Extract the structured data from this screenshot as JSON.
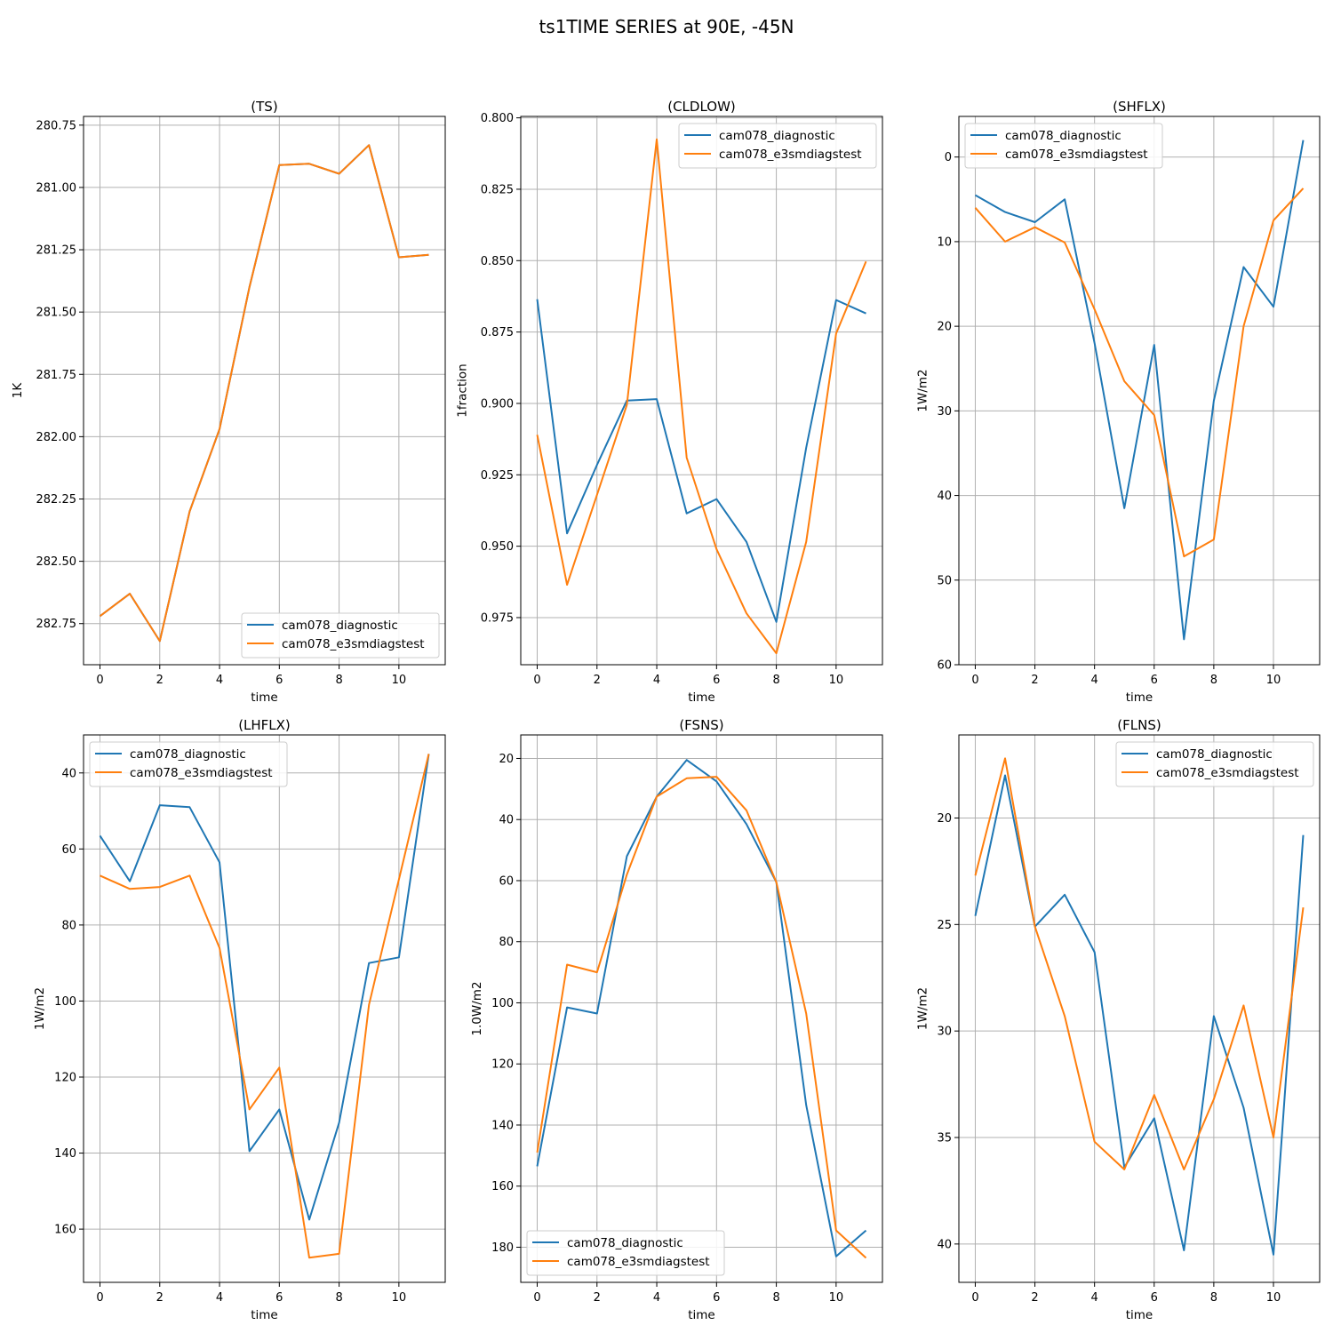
{
  "figure": {
    "suptitle": "ts1TIME SERIES at 90E, -45N"
  },
  "colors": {
    "series1": "#1f77b4",
    "series2": "#ff7f0e",
    "grid": "#b0b0b0",
    "axes": "#000000"
  },
  "chart_data": [
    {
      "type": "line",
      "title": "(TS)",
      "xlabel": "time",
      "ylabel": "1K",
      "x": [
        0,
        1,
        2,
        3,
        4,
        5,
        6,
        7,
        8,
        9,
        10,
        11
      ],
      "xlim": [
        -0.55,
        11.55
      ],
      "ylim": [
        282.915,
        280.715
      ],
      "y_inverted": true,
      "xticks": [
        0,
        2,
        4,
        6,
        8,
        10
      ],
      "yticks": [
        280.75,
        281.0,
        281.25,
        281.5,
        281.75,
        282.0,
        282.25,
        282.5,
        282.75
      ],
      "ytick_labels": [
        "280.75",
        "281.00",
        "281.25",
        "281.50",
        "281.75",
        "282.00",
        "282.25",
        "282.50",
        "282.75"
      ],
      "grid": true,
      "legend": "lower right",
      "series": [
        {
          "name": "cam078_diagnostic",
          "values": [
            282.72,
            282.63,
            282.82,
            282.3,
            281.97,
            281.4,
            280.91,
            280.905,
            280.945,
            280.83,
            281.28,
            281.27
          ]
        },
        {
          "name": "cam078_e3smdiagstest",
          "values": [
            282.72,
            282.63,
            282.82,
            282.3,
            281.97,
            281.4,
            280.91,
            280.905,
            280.945,
            280.83,
            281.28,
            281.27
          ]
        }
      ]
    },
    {
      "type": "line",
      "title": "(CLDLOW)",
      "xlabel": "time",
      "ylabel": "1fraction",
      "x": [
        0,
        1,
        2,
        3,
        4,
        5,
        6,
        7,
        8,
        9,
        10,
        11
      ],
      "xlim": [
        -0.55,
        11.55
      ],
      "ylim": [
        0.9915,
        0.7995
      ],
      "y_inverted": true,
      "xticks": [
        0,
        2,
        4,
        6,
        8,
        10
      ],
      "yticks": [
        0.8,
        0.825,
        0.85,
        0.875,
        0.9,
        0.925,
        0.95,
        0.975
      ],
      "ytick_labels": [
        "0.800",
        "0.825",
        "0.850",
        "0.875",
        "0.900",
        "0.925",
        "0.950",
        "0.975"
      ],
      "grid": true,
      "legend": "upper right",
      "series": [
        {
          "name": "cam078_diagnostic",
          "values": [
            0.8635,
            0.9455,
            0.9215,
            0.899,
            0.8985,
            0.9385,
            0.9335,
            0.9485,
            0.9765,
            0.9155,
            0.8638,
            0.8685
          ]
        },
        {
          "name": "cam078_e3smdiagstest",
          "values": [
            0.911,
            0.9635,
            0.932,
            0.9005,
            0.8075,
            0.919,
            0.951,
            0.9735,
            0.9875,
            0.9485,
            0.8755,
            0.8503
          ]
        }
      ]
    },
    {
      "type": "line",
      "title": "(SHFLX)",
      "xlabel": "time",
      "ylabel": "1W/m2",
      "x": [
        0,
        1,
        2,
        3,
        4,
        5,
        6,
        7,
        8,
        9,
        10,
        11
      ],
      "xlim": [
        -0.55,
        11.55
      ],
      "ylim": [
        60,
        -4.8
      ],
      "y_inverted": true,
      "xticks": [
        0,
        2,
        4,
        6,
        8,
        10
      ],
      "yticks": [
        0,
        10,
        20,
        30,
        40,
        50,
        60
      ],
      "ytick_labels": [
        "0",
        "10",
        "20",
        "30",
        "40",
        "50",
        "60"
      ],
      "grid": true,
      "legend": "upper left",
      "series": [
        {
          "name": "cam078_diagnostic",
          "values": [
            4.5,
            6.5,
            7.7,
            5.0,
            22.0,
            41.5,
            22.2,
            57.0,
            28.8,
            13.0,
            17.7,
            -2.0
          ]
        },
        {
          "name": "cam078_e3smdiagstest",
          "values": [
            6.0,
            10.0,
            8.3,
            10.1,
            18.0,
            26.5,
            30.5,
            47.2,
            45.2,
            20.0,
            7.5,
            3.7
          ]
        }
      ]
    },
    {
      "type": "line",
      "title": "(LHFLX)",
      "xlabel": "time",
      "ylabel": "1W/m2",
      "x": [
        0,
        1,
        2,
        3,
        4,
        5,
        6,
        7,
        8,
        9,
        10,
        11
      ],
      "xlim": [
        -0.55,
        11.55
      ],
      "ylim": [
        174,
        30
      ],
      "y_inverted": true,
      "xticks": [
        0,
        2,
        4,
        6,
        8,
        10
      ],
      "yticks": [
        40,
        60,
        80,
        100,
        120,
        140,
        160
      ],
      "ytick_labels": [
        "40",
        "60",
        "80",
        "100",
        "120",
        "140",
        "160"
      ],
      "grid": true,
      "legend": "upper left",
      "series": [
        {
          "name": "cam078_diagnostic",
          "values": [
            56.5,
            68.5,
            48.5,
            49.0,
            63.5,
            139.5,
            128.5,
            157.5,
            132.0,
            90.0,
            88.5,
            35.0
          ]
        },
        {
          "name": "cam078_e3smdiagstest",
          "values": [
            67.0,
            70.5,
            70.0,
            67.0,
            86.0,
            128.5,
            117.5,
            167.5,
            166.5,
            101.0,
            68.0,
            35.0
          ]
        }
      ]
    },
    {
      "type": "line",
      "title": "(FSNS)",
      "xlabel": "time",
      "ylabel": "1.0W/m2",
      "x": [
        0,
        1,
        2,
        3,
        4,
        5,
        6,
        7,
        8,
        9,
        10,
        11
      ],
      "xlim": [
        -0.55,
        11.55
      ],
      "ylim": [
        191.5,
        12.3
      ],
      "y_inverted": true,
      "xticks": [
        0,
        2,
        4,
        6,
        8,
        10
      ],
      "yticks": [
        20,
        40,
        60,
        80,
        100,
        120,
        140,
        160,
        180
      ],
      "ytick_labels": [
        "20",
        "40",
        "60",
        "80",
        "100",
        "120",
        "140",
        "160",
        "180"
      ],
      "grid": true,
      "legend": "lower left",
      "series": [
        {
          "name": "cam078_diagnostic",
          "values": [
            153.5,
            101.5,
            103.5,
            52.0,
            32.5,
            20.5,
            27.5,
            41.5,
            60.5,
            133.5,
            183.0,
            174.5
          ]
        },
        {
          "name": "cam078_e3smdiagstest",
          "values": [
            149.0,
            87.5,
            90.0,
            58.0,
            32.5,
            26.5,
            26.0,
            37.0,
            60.5,
            103.5,
            174.5,
            183.5
          ]
        }
      ]
    },
    {
      "type": "line",
      "title": "(FLNS)",
      "xlabel": "time",
      "ylabel": "1W/m2",
      "x": [
        0,
        1,
        2,
        3,
        4,
        5,
        6,
        7,
        8,
        9,
        10,
        11
      ],
      "xlim": [
        -0.55,
        11.55
      ],
      "ylim": [
        41.8,
        16.1
      ],
      "y_inverted": true,
      "xticks": [
        0,
        2,
        4,
        6,
        8,
        10
      ],
      "yticks": [
        20,
        25,
        30,
        35,
        40
      ],
      "ytick_labels": [
        "20",
        "25",
        "30",
        "35",
        "40"
      ],
      "grid": true,
      "legend": "upper right",
      "series": [
        {
          "name": "cam078_diagnostic",
          "values": [
            24.6,
            18.0,
            25.1,
            23.6,
            26.3,
            36.4,
            34.1,
            40.3,
            29.3,
            33.6,
            40.5,
            20.8
          ]
        },
        {
          "name": "cam078_e3smdiagstest",
          "values": [
            22.7,
            17.2,
            25.1,
            29.3,
            35.2,
            36.5,
            33.0,
            36.5,
            33.2,
            28.8,
            35.0,
            24.2
          ]
        }
      ]
    }
  ]
}
